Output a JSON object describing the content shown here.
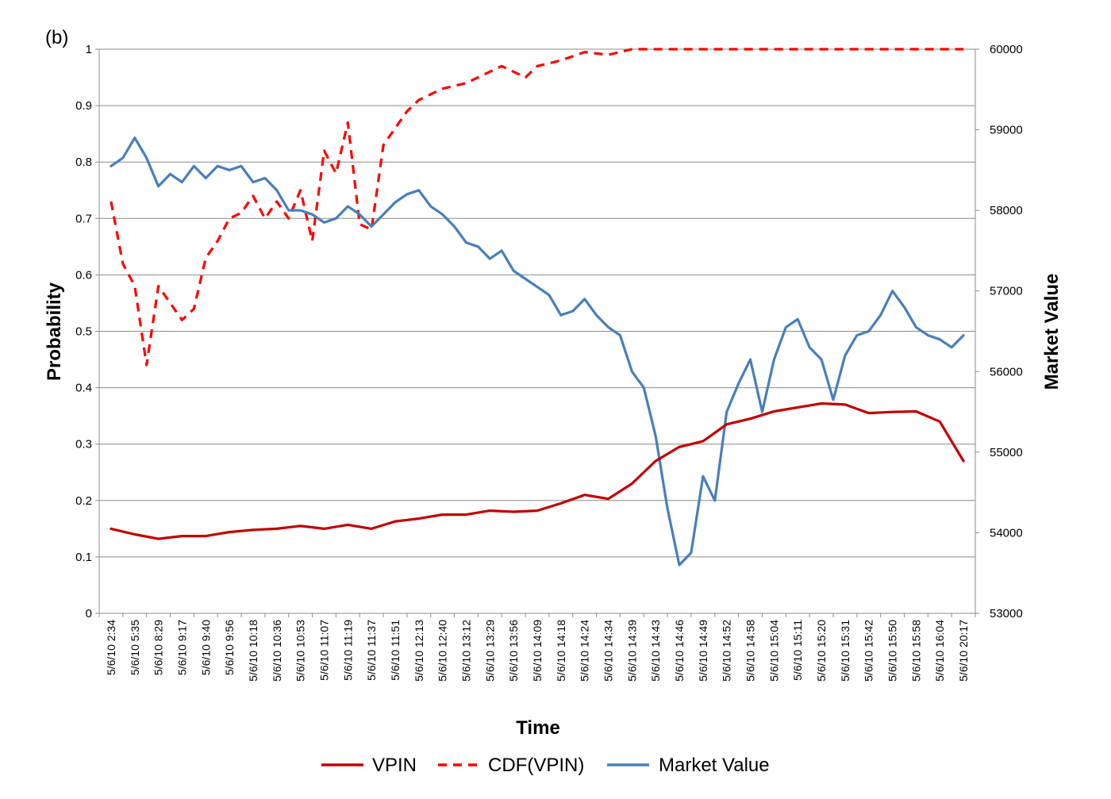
{
  "chart_data": {
    "type": "line",
    "panel_label": "(b)",
    "xlabel": "Time",
    "ylabel_left": "Probability",
    "ylabel_right": "Market Value",
    "ylim_left": [
      0,
      1
    ],
    "ylim_right": [
      53000,
      60000
    ],
    "yticks_left": [
      "0",
      "0.1",
      "0.2",
      "0.3",
      "0.4",
      "0.5",
      "0.6",
      "0.7",
      "0.8",
      "0.9",
      "1"
    ],
    "yticks_right": [
      "53000",
      "54000",
      "55000",
      "56000",
      "57000",
      "58000",
      "59000",
      "60000"
    ],
    "x_tick_labels": [
      "5/6/10 2:34",
      "5/6/10 5:35",
      "5/6/10 8:29",
      "5/6/10 9:17",
      "5/6/10 9:40",
      "5/6/10 9:56",
      "5/6/10 10:18",
      "5/6/10 10:36",
      "5/6/10 10:53",
      "5/6/10 11:07",
      "5/6/10 11:19",
      "5/6/10 11:37",
      "5/6/10 11:51",
      "5/6/10 12:13",
      "5/6/10 12:40",
      "5/6/10 13:12",
      "5/6/10 13:29",
      "5/6/10 13:56",
      "5/6/10 14:09",
      "5/6/10 14:18",
      "5/6/10 14:24",
      "5/6/10 14:34",
      "5/6/10 14:39",
      "5/6/10 14:43",
      "5/6/10 14:46",
      "5/6/10 14:49",
      "5/6/10 14:52",
      "5/6/10 14:58",
      "5/6/10 15:04",
      "5/6/10 15:11",
      "5/6/10 15:20",
      "5/6/10 15:31",
      "5/6/10 15:42",
      "5/6/10 15:50",
      "5/6/10 15:58",
      "5/6/10 16:04",
      "5/6/10 20:17"
    ],
    "grid": true,
    "legend_position": "bottom",
    "series": [
      {
        "name": "VPIN",
        "axis": "left",
        "color": "#C00000",
        "style": "solid",
        "x": [
          0,
          1,
          2,
          3,
          4,
          5,
          6,
          7,
          8,
          9,
          10,
          11,
          12,
          13,
          14,
          15,
          16,
          17,
          18,
          19,
          20,
          21,
          22,
          23,
          24,
          25,
          26,
          27,
          28,
          29,
          30,
          31,
          32,
          33,
          34,
          35,
          36
        ],
        "values": [
          0.15,
          0.14,
          0.132,
          0.137,
          0.137,
          0.144,
          0.148,
          0.15,
          0.155,
          0.15,
          0.157,
          0.15,
          0.163,
          0.168,
          0.175,
          0.175,
          0.182,
          0.18,
          0.182,
          0.195,
          0.21,
          0.203,
          0.23,
          0.27,
          0.295,
          0.305,
          0.335,
          0.345,
          0.358,
          0.365,
          0.372,
          0.37,
          0.355,
          0.357,
          0.358,
          0.34,
          0.27
        ]
      },
      {
        "name": "CDF(VPIN)",
        "axis": "left",
        "color": "#FF0000",
        "style": "dashed",
        "x": [
          0,
          0.5,
          1,
          1.5,
          2,
          2.5,
          3,
          3.5,
          4,
          4.5,
          5,
          5.5,
          6,
          6.5,
          7,
          7.5,
          8,
          8.5,
          9,
          9.5,
          10,
          10.5,
          11,
          11.5,
          12,
          12.5,
          13,
          14,
          15,
          16,
          16.5,
          17,
          17.5,
          18,
          19,
          20,
          21,
          22,
          23,
          24,
          25,
          26,
          27,
          28,
          29,
          30,
          31,
          32,
          33,
          34,
          35,
          36
        ],
        "values": [
          0.73,
          0.62,
          0.58,
          0.44,
          0.58,
          0.55,
          0.52,
          0.54,
          0.63,
          0.66,
          0.7,
          0.71,
          0.74,
          0.7,
          0.73,
          0.7,
          0.75,
          0.66,
          0.82,
          0.78,
          0.87,
          0.69,
          0.68,
          0.83,
          0.86,
          0.89,
          0.91,
          0.93,
          0.94,
          0.96,
          0.97,
          0.96,
          0.95,
          0.97,
          0.98,
          0.995,
          0.99,
          1.0,
          1.0,
          1.0,
          1.0,
          1.0,
          1.0,
          1.0,
          1.0,
          1.0,
          1.0,
          1.0,
          1.0,
          1.0,
          1.0,
          1.0
        ]
      },
      {
        "name": "Market Value",
        "axis": "right",
        "color": "#4A7EBB",
        "style": "solid",
        "x": [
          0,
          0.5,
          1,
          1.5,
          2,
          2.5,
          3,
          3.5,
          4,
          4.5,
          5,
          5.5,
          6,
          6.5,
          7,
          7.5,
          8,
          8.5,
          9,
          9.5,
          10,
          10.5,
          11,
          11.5,
          12,
          12.5,
          13,
          13.5,
          14,
          14.5,
          15,
          15.5,
          16,
          16.5,
          17,
          17.5,
          18,
          18.5,
          19,
          19.5,
          20,
          20.5,
          21,
          21.5,
          22,
          22.5,
          23,
          23.5,
          24,
          24.5,
          25,
          25.5,
          26,
          26.5,
          27,
          27.5,
          28,
          28.5,
          29,
          29.5,
          30,
          30.5,
          31,
          31.5,
          32,
          32.5,
          33,
          33.5,
          34,
          34.5,
          35,
          35.5,
          36
        ],
        "values": [
          58550,
          58650,
          58900,
          58650,
          58300,
          58450,
          58350,
          58550,
          58400,
          58550,
          58500,
          58550,
          58350,
          58400,
          58250,
          58000,
          58000,
          57950,
          57850,
          57900,
          58050,
          57950,
          57800,
          57950,
          58100,
          58200,
          58250,
          58050,
          57950,
          57800,
          57600,
          57550,
          57400,
          57500,
          57250,
          57150,
          57050,
          56950,
          56700,
          56750,
          56900,
          56700,
          56550,
          56450,
          56000,
          55800,
          55200,
          54300,
          53600,
          53750,
          54700,
          54400,
          55500,
          55850,
          56150,
          55500,
          56150,
          56550,
          56650,
          56300,
          56150,
          55650,
          56200,
          56450,
          56500,
          56700,
          57000,
          56800,
          56550,
          56450,
          56400,
          56300,
          56450
        ]
      }
    ]
  }
}
